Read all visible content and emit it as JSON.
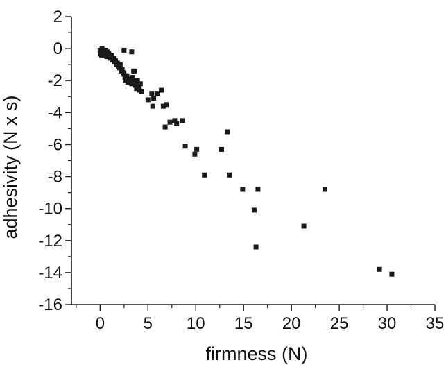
{
  "chart_data": {
    "type": "scatter",
    "title": "",
    "xlabel": "firmness (N)",
    "ylabel": "adhesivity (N x s)",
    "xlim": [
      -3,
      35
    ],
    "ylim": [
      -16,
      2
    ],
    "xticks": [
      0,
      5,
      10,
      15,
      20,
      25,
      30,
      35
    ],
    "yticks": [
      2,
      0,
      -2,
      -4,
      -6,
      -8,
      -10,
      -12,
      -14,
      -16
    ],
    "x_minor_step": 2.5,
    "y_minor_step": 1,
    "grid": false,
    "marker": "square",
    "marker_color": "#1a1a1a",
    "series": [
      {
        "points": [
          [
            0.0,
            -0.1
          ],
          [
            0.05,
            -0.3
          ],
          [
            0.1,
            -0.2
          ],
          [
            0.15,
            -0.4
          ],
          [
            0.2,
            0.0
          ],
          [
            0.25,
            -0.15
          ],
          [
            0.3,
            -0.3
          ],
          [
            0.35,
            -0.1
          ],
          [
            0.4,
            -0.25
          ],
          [
            0.45,
            -0.45
          ],
          [
            0.5,
            -0.2
          ],
          [
            0.55,
            -0.35
          ],
          [
            0.6,
            -0.1
          ],
          [
            0.65,
            -0.3
          ],
          [
            0.7,
            -0.5
          ],
          [
            0.75,
            -0.2
          ],
          [
            0.8,
            -0.4
          ],
          [
            0.9,
            -0.3
          ],
          [
            1.0,
            -0.5
          ],
          [
            1.1,
            -0.6
          ],
          [
            1.2,
            -0.45
          ],
          [
            1.3,
            -0.7
          ],
          [
            1.4,
            -0.6
          ],
          [
            1.5,
            -0.8
          ],
          [
            1.6,
            -0.75
          ],
          [
            1.7,
            -1.0
          ],
          [
            1.8,
            -0.9
          ],
          [
            1.9,
            -1.1
          ],
          [
            2.0,
            -1.2
          ],
          [
            2.1,
            -1.0
          ],
          [
            2.2,
            -1.4
          ],
          [
            2.3,
            -1.3
          ],
          [
            2.4,
            -1.5
          ],
          [
            2.5,
            -1.6
          ],
          [
            2.6,
            -1.8
          ],
          [
            2.7,
            -2.0
          ],
          [
            2.8,
            -1.7
          ],
          [
            2.9,
            -2.1
          ],
          [
            3.0,
            -1.9
          ],
          [
            3.1,
            -2.0
          ],
          [
            3.3,
            -2.2
          ],
          [
            3.4,
            -1.8
          ],
          [
            3.5,
            -2.0
          ],
          [
            3.6,
            -1.4
          ],
          [
            3.7,
            -2.3
          ],
          [
            3.8,
            -2.5
          ],
          [
            3.9,
            -2.0
          ],
          [
            4.0,
            -2.4
          ],
          [
            4.1,
            -2.6
          ],
          [
            4.2,
            -2.2
          ],
          [
            4.3,
            -2.7
          ],
          [
            2.5,
            -0.1
          ],
          [
            3.3,
            -0.2
          ],
          [
            3.5,
            -1.4
          ],
          [
            5.0,
            -3.2
          ],
          [
            5.4,
            -2.8
          ],
          [
            5.6,
            -3.1
          ],
          [
            5.5,
            -3.6
          ],
          [
            6.0,
            -2.8
          ],
          [
            6.4,
            -2.6
          ],
          [
            6.6,
            -3.6
          ],
          [
            6.9,
            -3.5
          ],
          [
            6.8,
            -4.9
          ],
          [
            7.3,
            -4.6
          ],
          [
            7.8,
            -4.5
          ],
          [
            8.0,
            -4.7
          ],
          [
            8.6,
            -4.5
          ],
          [
            8.9,
            -6.1
          ],
          [
            9.9,
            -6.6
          ],
          [
            10.1,
            -6.3
          ],
          [
            10.9,
            -7.9
          ],
          [
            12.7,
            -6.3
          ],
          [
            13.3,
            -5.2
          ],
          [
            13.5,
            -7.9
          ],
          [
            14.9,
            -8.8
          ],
          [
            16.1,
            -10.1
          ],
          [
            16.3,
            -12.4
          ],
          [
            16.5,
            -8.8
          ],
          [
            21.3,
            -11.1
          ],
          [
            23.5,
            -8.8
          ],
          [
            29.2,
            -13.8
          ],
          [
            30.5,
            -14.1
          ]
        ]
      }
    ]
  }
}
